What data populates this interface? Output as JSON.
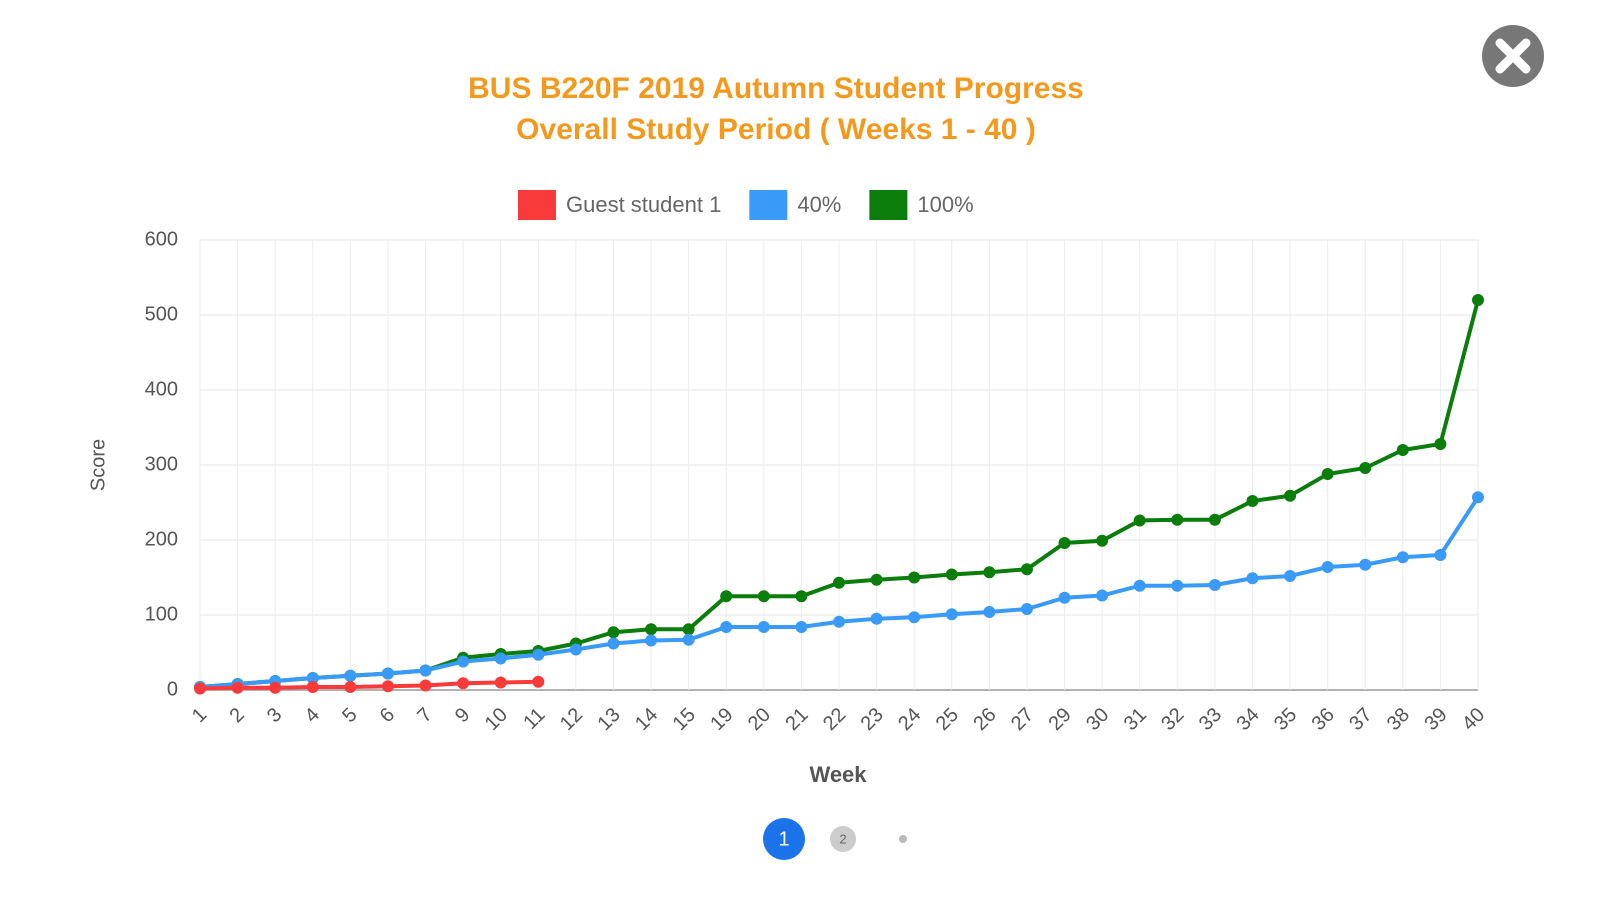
{
  "chart_data": {
    "type": "line",
    "title": [
      "BUS B220F 2019 Autumn Student Progress",
      "Overall Study Period ( Weeks 1 - 40 )"
    ],
    "x_label": "Week",
    "y_label": "Score",
    "categories": [
      "1",
      "2",
      "3",
      "4",
      "5",
      "6",
      "7",
      "9",
      "10",
      "11",
      "12",
      "13",
      "14",
      "15",
      "19",
      "20",
      "21",
      "22",
      "23",
      "24",
      "25",
      "26",
      "27",
      "29",
      "30",
      "31",
      "32",
      "33",
      "34",
      "35",
      "36",
      "37",
      "38",
      "39",
      "40"
    ],
    "series": [
      {
        "name": "Guest student 1",
        "color": "#f83a3a",
        "values": [
          2,
          3,
          3,
          4,
          4,
          5,
          6,
          9,
          10,
          11,
          null,
          null,
          null,
          null,
          null,
          null,
          null,
          null,
          null,
          null,
          null,
          null,
          null,
          null,
          null,
          null,
          null,
          null,
          null,
          null,
          null,
          null,
          null,
          null,
          null
        ]
      },
      {
        "name": "40%",
        "color": "#3a9af8",
        "values": [
          4,
          8,
          12,
          16,
          19,
          22,
          26,
          38,
          42,
          47,
          54,
          62,
          66,
          67,
          84,
          84,
          84,
          91,
          95,
          97,
          101,
          104,
          108,
          123,
          126,
          139,
          139,
          140,
          149,
          152,
          164,
          167,
          177,
          180,
          257
        ]
      },
      {
        "name": "100%",
        "color": "#0a7d0a",
        "values": [
          4,
          8,
          12,
          16,
          19,
          22,
          26,
          43,
          48,
          52,
          62,
          77,
          81,
          81,
          125,
          125,
          125,
          143,
          147,
          150,
          154,
          157,
          161,
          196,
          199,
          226,
          227,
          227,
          252,
          259,
          288,
          296,
          320,
          328,
          520
        ]
      }
    ],
    "ylim": [
      0,
      600
    ],
    "yticks": [
      0,
      100,
      200,
      300,
      400,
      500,
      600
    ],
    "grid": true,
    "legend": "top"
  },
  "pagination": [
    "1",
    "2"
  ]
}
